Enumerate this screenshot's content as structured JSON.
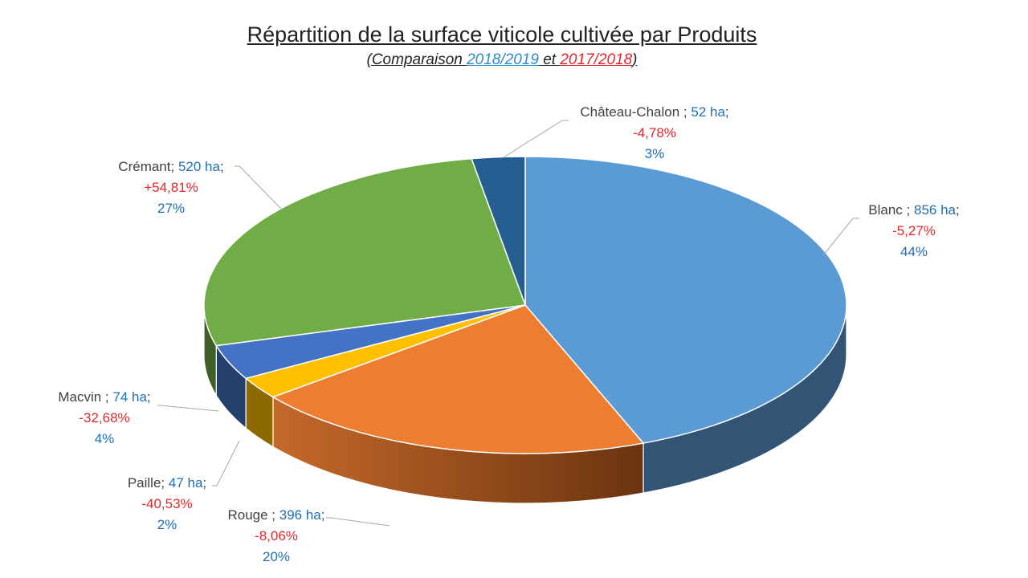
{
  "chart_data": {
    "type": "pie",
    "title": "Répartition de la surface viticole cultivée par Produits",
    "subtitle": {
      "prefix": "(Comparaison ",
      "period_current": "2018/2019",
      "middle": " et ",
      "period_previous": "2017/2018",
      "suffix": ")"
    },
    "colors": {
      "current_period": "#2e8bc7",
      "previous_period": "#e0282c"
    },
    "slices": [
      {
        "key": "blanc",
        "name": "Blanc ;",
        "area_text": "856 ha",
        "area": 856,
        "change_text": "-5,27%",
        "percent_text": "44%",
        "percent": 44,
        "color": "#5b9bd5"
      },
      {
        "key": "rouge",
        "name": "Rouge ;",
        "area_text": "396 ha",
        "area": 396,
        "change_text": "-8,06%",
        "percent_text": "20%",
        "percent": 20,
        "color": "#ed7d31"
      },
      {
        "key": "paille",
        "name": "Paille;",
        "area_text": "47 ha",
        "area": 47,
        "change_text": "-40,53%",
        "percent_text": "2%",
        "percent": 2,
        "color": "#ffc000"
      },
      {
        "key": "macvin",
        "name": "Macvin ;",
        "area_text": "74 ha",
        "area": 74,
        "change_text": "-32,68%",
        "percent_text": "4%",
        "percent": 4,
        "color": "#4472c4"
      },
      {
        "key": "cremant",
        "name": "Crémant;",
        "area_text": "520 ha",
        "area": 520,
        "change_text": "+54,81%",
        "percent_text": "27%",
        "percent": 27,
        "color": "#70ad47"
      },
      {
        "key": "chateau-chalon",
        "name": "Château-Chalon ;",
        "area_text": "52 ha",
        "area": 52,
        "change_text": "-4,78%",
        "percent_text": "3%",
        "percent": 3,
        "color": "#255e91"
      }
    ]
  }
}
